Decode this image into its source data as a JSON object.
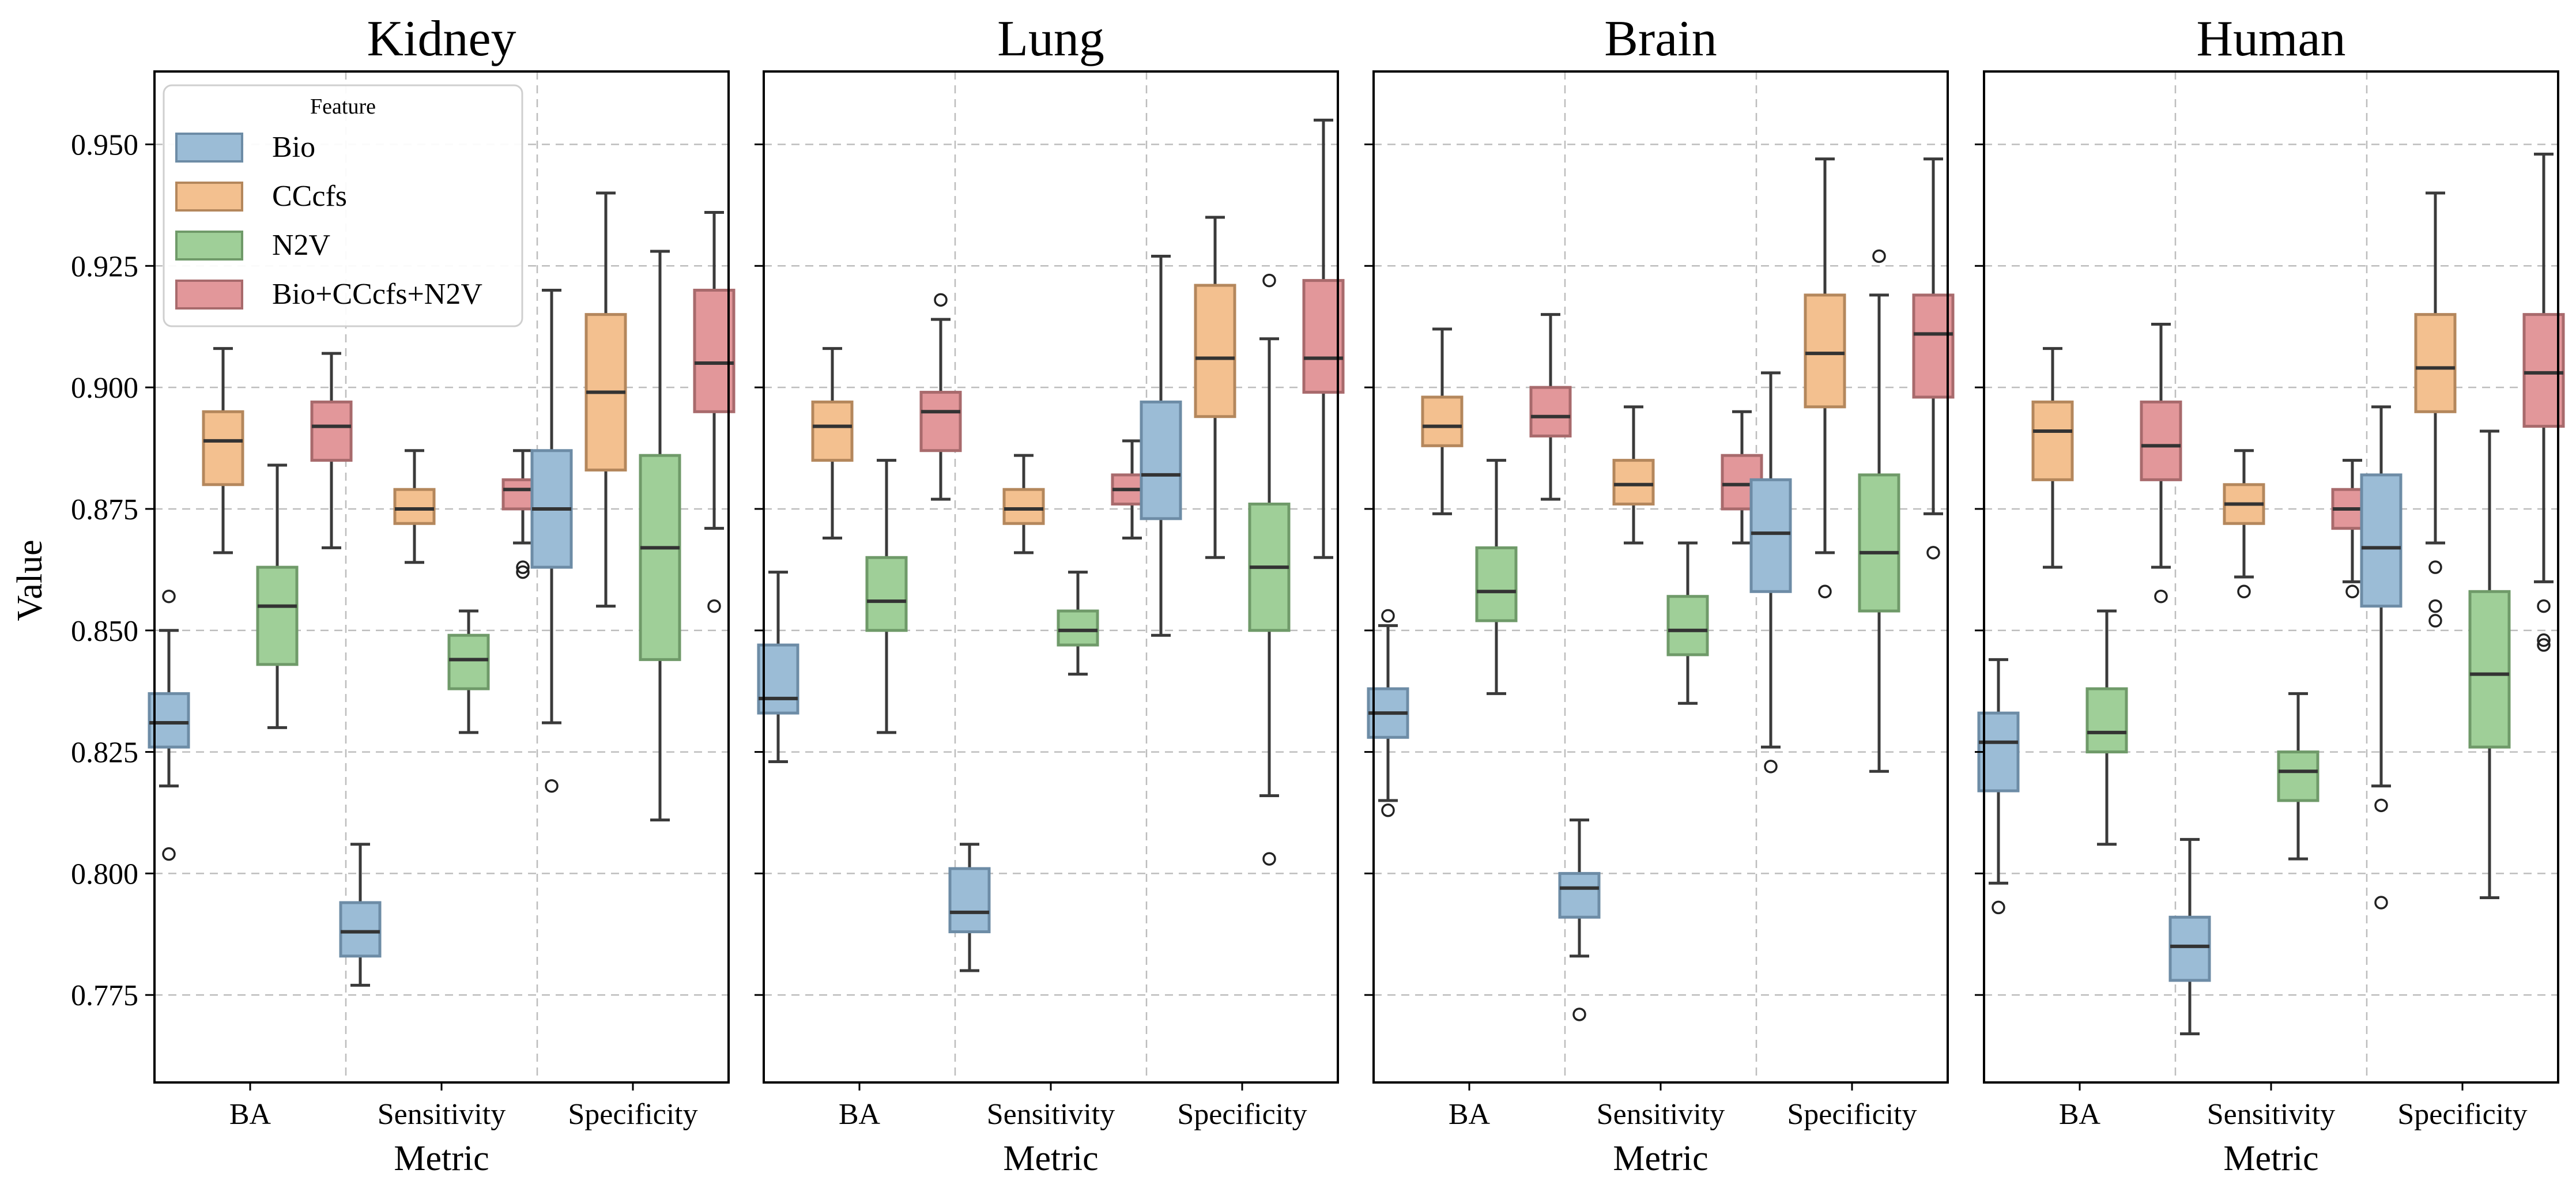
{
  "chart_data": {
    "type": "box",
    "y_label": "Value",
    "x_label": "Metric",
    "y_range": [
      0.757,
      0.965
    ],
    "y_ticks": [
      "0.775",
      "0.800",
      "0.825",
      "0.850",
      "0.875",
      "0.900",
      "0.925",
      "0.950"
    ],
    "grid": true,
    "categories": [
      "BA",
      "Sensitivity",
      "Specificity"
    ],
    "legend": {
      "title": "Feature",
      "placement": "top-left of first panel",
      "entries": [
        "Bio",
        "CCcfs",
        "N2V",
        "Bio+CCcfs+N2V"
      ]
    },
    "colors": {
      "Bio": "#9bbcd6",
      "CCcfs": "#f3c08f",
      "N2V": "#9fcf98",
      "Bio+CCcfs+N2V": "#e2979a",
      "Bio_edge": "#6d8ca6",
      "CCcfs_edge": "#b4875c",
      "N2V_edge": "#6f9a69",
      "Bio+CCcfs+N2V_edge": "#a86a6c"
    },
    "panels": [
      {
        "title": "Kidney",
        "show_xlabel": true,
        "boxes": {
          "BA": [
            {
              "min": 0.818,
              "q1": 0.826,
              "median": 0.831,
              "q3": 0.837,
              "max": 0.85,
              "outliers": [
                0.857,
                0.804
              ]
            },
            {
              "min": 0.866,
              "q1": 0.88,
              "median": 0.889,
              "q3": 0.895,
              "max": 0.908,
              "outliers": []
            },
            {
              "min": 0.83,
              "q1": 0.843,
              "median": 0.855,
              "q3": 0.863,
              "max": 0.884,
              "outliers": []
            },
            {
              "min": 0.867,
              "q1": 0.885,
              "median": 0.892,
              "q3": 0.897,
              "max": 0.907,
              "outliers": []
            }
          ],
          "Sensitivity": [
            {
              "min": 0.777,
              "q1": 0.783,
              "median": 0.788,
              "q3": 0.794,
              "max": 0.806,
              "outliers": []
            },
            {
              "min": 0.864,
              "q1": 0.872,
              "median": 0.875,
              "q3": 0.879,
              "max": 0.887,
              "outliers": []
            },
            {
              "min": 0.829,
              "q1": 0.838,
              "median": 0.844,
              "q3": 0.849,
              "max": 0.854,
              "outliers": []
            },
            {
              "min": 0.868,
              "q1": 0.875,
              "median": 0.879,
              "q3": 0.881,
              "max": 0.887,
              "outliers": [
                0.863,
                0.862
              ]
            }
          ],
          "Specificity": [
            {
              "min": 0.831,
              "q1": 0.863,
              "median": 0.875,
              "q3": 0.887,
              "max": 0.92,
              "outliers": [
                0.818
              ]
            },
            {
              "min": 0.855,
              "q1": 0.883,
              "median": 0.899,
              "q3": 0.915,
              "max": 0.94,
              "outliers": []
            },
            {
              "min": 0.811,
              "q1": 0.844,
              "median": 0.867,
              "q3": 0.886,
              "max": 0.928,
              "outliers": []
            },
            {
              "min": 0.871,
              "q1": 0.895,
              "median": 0.905,
              "q3": 0.92,
              "max": 0.936,
              "outliers": [
                0.855
              ]
            }
          ]
        }
      },
      {
        "title": "Lung",
        "show_xlabel": true,
        "boxes": {
          "BA": [
            {
              "min": 0.823,
              "q1": 0.833,
              "median": 0.836,
              "q3": 0.847,
              "max": 0.862,
              "outliers": []
            },
            {
              "min": 0.869,
              "q1": 0.885,
              "median": 0.892,
              "q3": 0.897,
              "max": 0.908,
              "outliers": []
            },
            {
              "min": 0.829,
              "q1": 0.85,
              "median": 0.856,
              "q3": 0.865,
              "max": 0.885,
              "outliers": []
            },
            {
              "min": 0.877,
              "q1": 0.887,
              "median": 0.895,
              "q3": 0.899,
              "max": 0.914,
              "outliers": [
                0.918
              ]
            }
          ],
          "Sensitivity": [
            {
              "min": 0.78,
              "q1": 0.788,
              "median": 0.792,
              "q3": 0.801,
              "max": 0.806,
              "outliers": []
            },
            {
              "min": 0.866,
              "q1": 0.872,
              "median": 0.875,
              "q3": 0.879,
              "max": 0.886,
              "outliers": []
            },
            {
              "min": 0.841,
              "q1": 0.847,
              "median": 0.85,
              "q3": 0.854,
              "max": 0.862,
              "outliers": []
            },
            {
              "min": 0.869,
              "q1": 0.876,
              "median": 0.879,
              "q3": 0.882,
              "max": 0.889,
              "outliers": []
            }
          ],
          "Specificity": [
            {
              "min": 0.849,
              "q1": 0.873,
              "median": 0.882,
              "q3": 0.897,
              "max": 0.927,
              "outliers": []
            },
            {
              "min": 0.865,
              "q1": 0.894,
              "median": 0.906,
              "q3": 0.921,
              "max": 0.935,
              "outliers": []
            },
            {
              "min": 0.816,
              "q1": 0.85,
              "median": 0.863,
              "q3": 0.876,
              "max": 0.91,
              "outliers": [
                0.922,
                0.803
              ]
            },
            {
              "min": 0.865,
              "q1": 0.899,
              "median": 0.906,
              "q3": 0.922,
              "max": 0.955,
              "outliers": []
            }
          ]
        }
      },
      {
        "title": "Brain",
        "show_xlabel": true,
        "boxes": {
          "BA": [
            {
              "min": 0.815,
              "q1": 0.828,
              "median": 0.833,
              "q3": 0.838,
              "max": 0.851,
              "outliers": [
                0.853,
                0.813
              ]
            },
            {
              "min": 0.874,
              "q1": 0.888,
              "median": 0.892,
              "q3": 0.898,
              "max": 0.912,
              "outliers": []
            },
            {
              "min": 0.837,
              "q1": 0.852,
              "median": 0.858,
              "q3": 0.867,
              "max": 0.885,
              "outliers": []
            },
            {
              "min": 0.877,
              "q1": 0.89,
              "median": 0.894,
              "q3": 0.9,
              "max": 0.915,
              "outliers": []
            }
          ],
          "Sensitivity": [
            {
              "min": 0.783,
              "q1": 0.791,
              "median": 0.797,
              "q3": 0.8,
              "max": 0.811,
              "outliers": [
                0.771
              ]
            },
            {
              "min": 0.868,
              "q1": 0.876,
              "median": 0.88,
              "q3": 0.885,
              "max": 0.896,
              "outliers": []
            },
            {
              "min": 0.835,
              "q1": 0.845,
              "median": 0.85,
              "q3": 0.857,
              "max": 0.868,
              "outliers": []
            },
            {
              "min": 0.868,
              "q1": 0.875,
              "median": 0.88,
              "q3": 0.886,
              "max": 0.895,
              "outliers": []
            }
          ],
          "Specificity": [
            {
              "min": 0.826,
              "q1": 0.858,
              "median": 0.87,
              "q3": 0.881,
              "max": 0.903,
              "outliers": [
                0.822
              ]
            },
            {
              "min": 0.866,
              "q1": 0.896,
              "median": 0.907,
              "q3": 0.919,
              "max": 0.947,
              "outliers": [
                0.858
              ]
            },
            {
              "min": 0.821,
              "q1": 0.854,
              "median": 0.866,
              "q3": 0.882,
              "max": 0.919,
              "outliers": [
                0.927
              ]
            },
            {
              "min": 0.874,
              "q1": 0.898,
              "median": 0.911,
              "q3": 0.919,
              "max": 0.947,
              "outliers": [
                0.866
              ]
            }
          ]
        }
      },
      {
        "title": "Human",
        "show_xlabel": true,
        "boxes": {
          "BA": [
            {
              "min": 0.798,
              "q1": 0.817,
              "median": 0.827,
              "q3": 0.833,
              "max": 0.844,
              "outliers": [
                0.793
              ]
            },
            {
              "min": 0.863,
              "q1": 0.881,
              "median": 0.891,
              "q3": 0.897,
              "max": 0.908,
              "outliers": []
            },
            {
              "min": 0.806,
              "q1": 0.825,
              "median": 0.829,
              "q3": 0.838,
              "max": 0.854,
              "outliers": []
            },
            {
              "min": 0.863,
              "q1": 0.881,
              "median": 0.888,
              "q3": 0.897,
              "max": 0.913,
              "outliers": [
                0.857
              ]
            }
          ],
          "Sensitivity": [
            {
              "min": 0.767,
              "q1": 0.778,
              "median": 0.785,
              "q3": 0.791,
              "max": 0.807,
              "outliers": []
            },
            {
              "min": 0.861,
              "q1": 0.872,
              "median": 0.876,
              "q3": 0.88,
              "max": 0.887,
              "outliers": [
                0.858
              ]
            },
            {
              "min": 0.803,
              "q1": 0.815,
              "median": 0.821,
              "q3": 0.825,
              "max": 0.837,
              "outliers": []
            },
            {
              "min": 0.86,
              "q1": 0.871,
              "median": 0.875,
              "q3": 0.879,
              "max": 0.885,
              "outliers": [
                0.858
              ]
            }
          ],
          "Specificity": [
            {
              "min": 0.818,
              "q1": 0.855,
              "median": 0.867,
              "q3": 0.882,
              "max": 0.896,
              "outliers": [
                0.814,
                0.794
              ]
            },
            {
              "min": 0.868,
              "q1": 0.895,
              "median": 0.904,
              "q3": 0.915,
              "max": 0.94,
              "outliers": [
                0.863,
                0.855,
                0.852
              ]
            },
            {
              "min": 0.795,
              "q1": 0.826,
              "median": 0.841,
              "q3": 0.858,
              "max": 0.891,
              "outliers": []
            },
            {
              "min": 0.86,
              "q1": 0.892,
              "median": 0.903,
              "q3": 0.915,
              "max": 0.948,
              "outliers": [
                0.855,
                0.848,
                0.847
              ]
            }
          ]
        }
      }
    ]
  }
}
